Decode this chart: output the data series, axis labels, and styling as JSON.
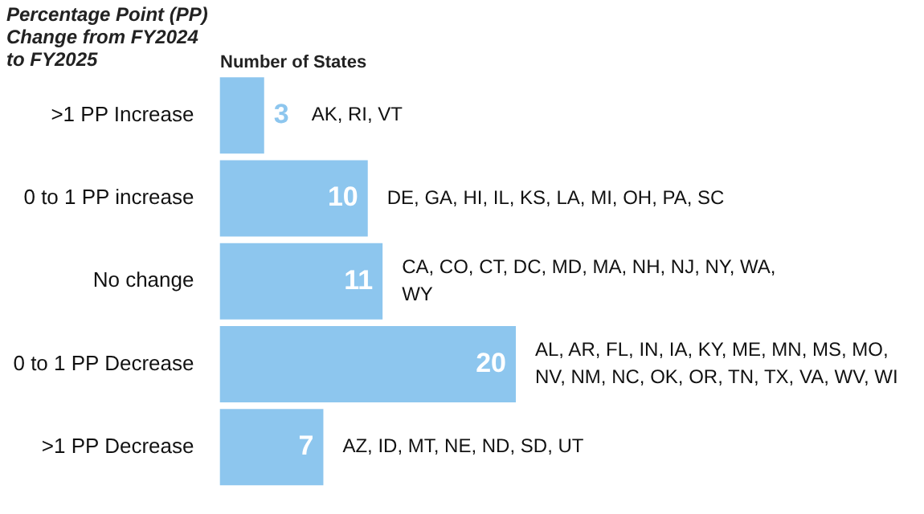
{
  "chart_data": {
    "type": "bar",
    "orientation": "horizontal",
    "ylabel": "Percentage Point (PP) Change from FY2024 to FY2025",
    "xlabel": "Number of States",
    "categories": [
      ">1 PP Increase",
      "0 to 1 PP increase",
      "No change",
      "0 to 1 PP Decrease",
      ">1 PP Decrease"
    ],
    "values": [
      3,
      10,
      11,
      20,
      7
    ],
    "color": "#8dc6ee",
    "data_labels": true,
    "legend": false,
    "tick_labels": "y",
    "annotations": [
      {
        "text": "AK, RI, VT",
        "x": 3,
        "y": ">1 PP Increase"
      },
      {
        "text": "DE, GA, HI, IL, KS, LA, MI, OH, PA, SC",
        "x": 10,
        "y": "0 to 1 PP increase"
      },
      {
        "text": "CA, CO, CT, DC, MD, MA, NH, NJ, NY, WA, WY",
        "x": 11,
        "y": "No change"
      },
      {
        "text": "AL, AR, FL, IN, IA, KY, ME, MN, MS, MO, NV, NM, NC, OK, OR, TN, TX, VA, WV, WI",
        "x": 20,
        "y": "0 to 1 PP Decrease"
      },
      {
        "text": "AZ, ID, MT, NE, ND, SD, UT",
        "x": 7,
        "y": ">1 PP Decrease"
      }
    ]
  }
}
